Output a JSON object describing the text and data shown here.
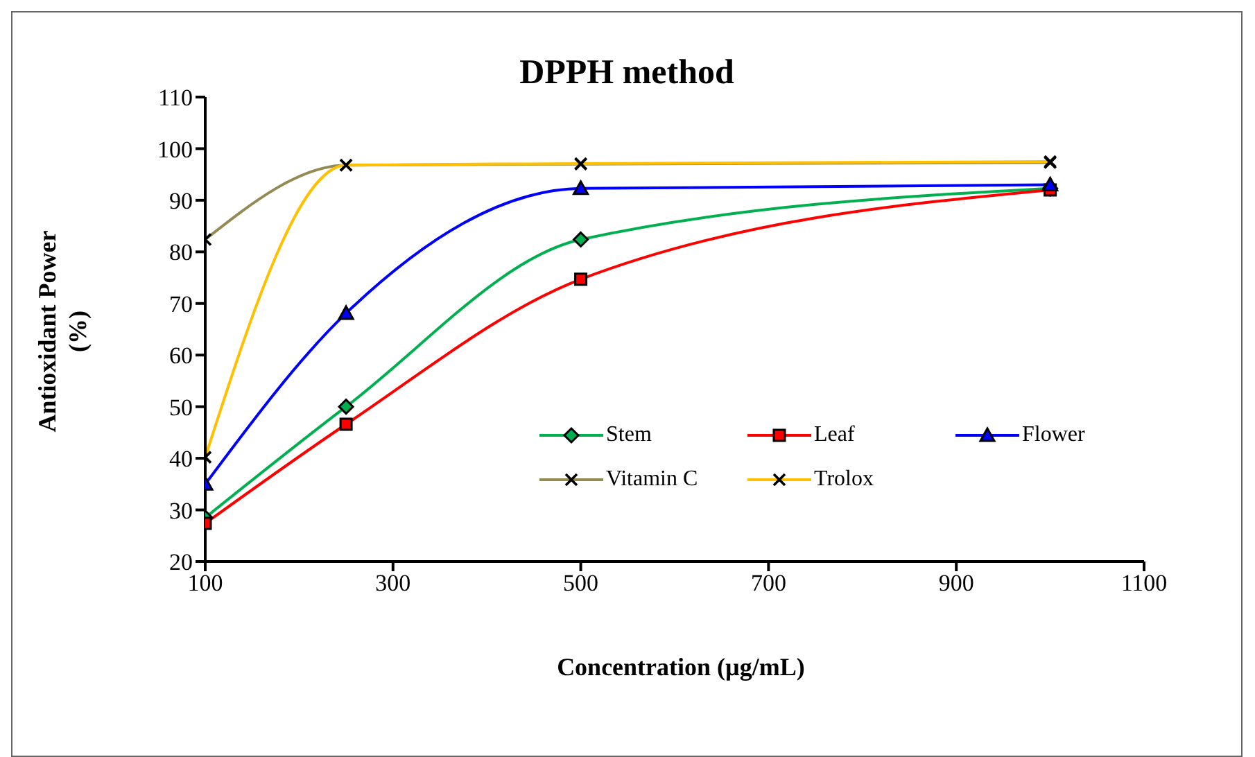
{
  "chart_data": {
    "type": "line",
    "title": "DPPH method",
    "xlabel": "Concentration (µg/mL)",
    "ylabel": "Antioxidant Power (%)",
    "x": [
      100,
      250,
      500,
      1000
    ],
    "xlim": [
      100,
      1100
    ],
    "xticks": [
      100,
      300,
      500,
      700,
      900,
      1100
    ],
    "ylim": [
      20,
      110
    ],
    "yticks": [
      20,
      30,
      40,
      50,
      60,
      70,
      80,
      90,
      100,
      110
    ],
    "legend": "right",
    "series": [
      {
        "name": "Stem",
        "color": "#00b050",
        "marker": "diamond",
        "values": [
          28.5,
          50,
          82.4,
          92.3
        ]
      },
      {
        "name": "Leaf",
        "color": "#ff0000",
        "marker": "square",
        "values": [
          27.4,
          46.6,
          74.7,
          92
        ]
      },
      {
        "name": "Flower",
        "color": "#0000ff",
        "marker": "triangle",
        "values": [
          35,
          68.1,
          92.3,
          93
        ]
      },
      {
        "name": "Vitamin C",
        "color": "#948a54",
        "marker": "cross",
        "values": [
          82.4,
          96.8,
          97,
          97.3
        ]
      },
      {
        "name": "Trolox",
        "color": "#ffc000",
        "marker": "cross",
        "values": [
          40.2,
          96.8,
          97.1,
          97.5
        ]
      }
    ]
  }
}
